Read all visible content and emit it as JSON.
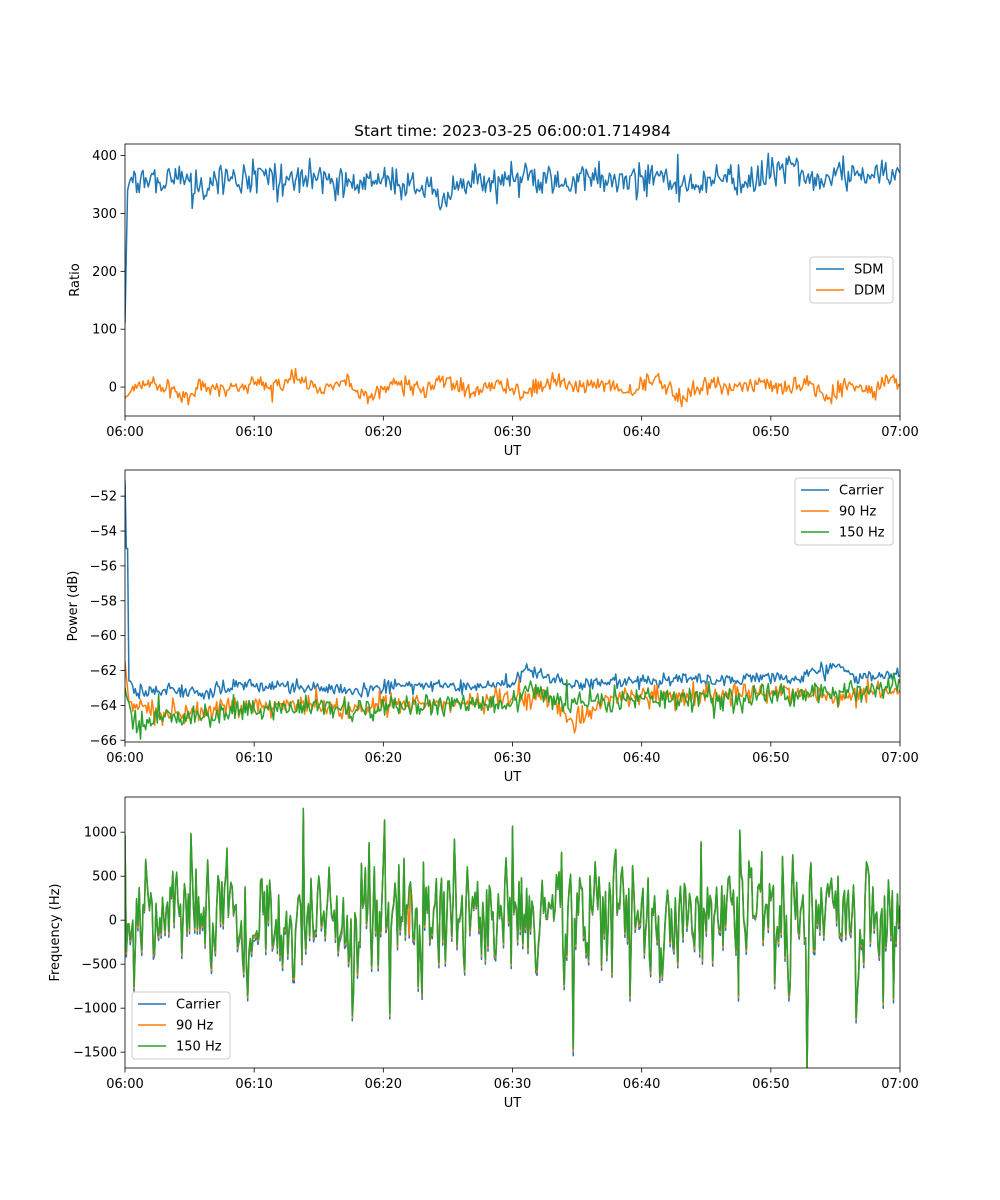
{
  "figure": {
    "title": "Start time: 2023-03-25 06:00:01.714984"
  },
  "chart_data": [
    {
      "type": "line",
      "title": "Start time: 2023-03-25 06:00:01.714984",
      "xlabel": "UT",
      "ylabel": "Ratio",
      "x_ticks": [
        "06:00",
        "06:10",
        "06:20",
        "06:30",
        "06:40",
        "06:50",
        "07:00"
      ],
      "y_ticks": [
        "0",
        "100",
        "200",
        "300",
        "400"
      ],
      "y_tick_values": [
        0,
        100,
        200,
        300,
        400
      ],
      "xlim_minutes": [
        0,
        60
      ],
      "ylim": [
        -50,
        420
      ],
      "legend_position": "center-right",
      "grid": false,
      "series": [
        {
          "name": "SDM",
          "color": "#1f77b4",
          "mean": 358,
          "noise": 14,
          "start_value": 110,
          "trend": 0,
          "points": [
            [
              0.0,
              110
            ],
            [
              0.2,
              340
            ],
            [
              0.5,
              362
            ],
            [
              1.0,
              352
            ],
            [
              2.0,
              365
            ],
            [
              3.0,
              348
            ],
            [
              4.0,
              360
            ],
            [
              5.0,
              355
            ],
            [
              6.0,
              340
            ],
            [
              7.0,
              362
            ],
            [
              8.0,
              357
            ],
            [
              10.0,
              368
            ],
            [
              12.0,
              355
            ],
            [
              14.0,
              365
            ],
            [
              16.0,
              360
            ],
            [
              18.0,
              350
            ],
            [
              20.0,
              362
            ],
            [
              22.0,
              348
            ],
            [
              24.0,
              340
            ],
            [
              24.5,
              312
            ],
            [
              26.0,
              360
            ],
            [
              28.0,
              352
            ],
            [
              30.0,
              365
            ],
            [
              32.0,
              358
            ],
            [
              34.0,
              350
            ],
            [
              36.0,
              362
            ],
            [
              38.0,
              355
            ],
            [
              40.0,
              365
            ],
            [
              42.0,
              358
            ],
            [
              44.0,
              350
            ],
            [
              46.0,
              362
            ],
            [
              48.0,
              355
            ],
            [
              50.0,
              365
            ],
            [
              51.5,
              390
            ],
            [
              53.0,
              352
            ],
            [
              55.0,
              365
            ],
            [
              57.0,
              358
            ],
            [
              58.0,
              362
            ],
            [
              59.5,
              367
            ],
            [
              60.0,
              370
            ]
          ]
        },
        {
          "name": "DDM",
          "color": "#ff7f0e",
          "mean": 0,
          "noise": 8,
          "start_value": -20,
          "trend": 0,
          "points": [
            [
              0.0,
              -20
            ],
            [
              0.5,
              -5
            ],
            [
              2.0,
              8
            ],
            [
              4.0,
              -8
            ],
            [
              5.0,
              -18
            ],
            [
              6.0,
              10
            ],
            [
              8.0,
              -5
            ],
            [
              10.0,
              5
            ],
            [
              12.0,
              0
            ],
            [
              13.0,
              18
            ],
            [
              15.0,
              -6
            ],
            [
              17.0,
              12
            ],
            [
              19.0,
              -18
            ],
            [
              21.0,
              10
            ],
            [
              23.0,
              -6
            ],
            [
              25.0,
              15
            ],
            [
              27.0,
              -8
            ],
            [
              29.0,
              5
            ],
            [
              31.0,
              -10
            ],
            [
              33.0,
              12
            ],
            [
              35.0,
              -5
            ],
            [
              37.0,
              8
            ],
            [
              39.0,
              -10
            ],
            [
              41.0,
              15
            ],
            [
              43.0,
              -22
            ],
            [
              45.0,
              8
            ],
            [
              47.0,
              -6
            ],
            [
              49.0,
              5
            ],
            [
              51.0,
              -8
            ],
            [
              53.0,
              10
            ],
            [
              54.5,
              -18
            ],
            [
              56.0,
              5
            ],
            [
              58.0,
              -8
            ],
            [
              59.0,
              18
            ],
            [
              60.0,
              2
            ]
          ]
        }
      ]
    },
    {
      "type": "line",
      "title": "",
      "xlabel": "UT",
      "ylabel": "Power (dB)",
      "x_ticks": [
        "06:00",
        "06:10",
        "06:20",
        "06:30",
        "06:40",
        "06:50",
        "07:00"
      ],
      "y_ticks": [
        "−66",
        "−64",
        "−62",
        "−60",
        "−58",
        "−56",
        "−54",
        "−52"
      ],
      "y_tick_values": [
        -66,
        -64,
        -62,
        -60,
        -58,
        -56,
        -54,
        -52
      ],
      "xlim_minutes": [
        0,
        60
      ],
      "ylim": [
        -66.1,
        -50.5
      ],
      "legend_position": "top-right",
      "grid": false,
      "series": [
        {
          "name": "Carrier",
          "color": "#1f77b4",
          "mean": -63.2,
          "noise": 0.2,
          "start_value": -51.1,
          "trend": 0.9,
          "points": [
            [
              0.0,
              -51.1
            ],
            [
              0.15,
              -55.0
            ],
            [
              0.35,
              -62.6
            ],
            [
              1.0,
              -63.3
            ],
            [
              3.0,
              -63.1
            ],
            [
              6.0,
              -63.3
            ],
            [
              9.0,
              -62.8
            ],
            [
              12.0,
              -62.9
            ],
            [
              15.0,
              -63.0
            ],
            [
              18.0,
              -63.1
            ],
            [
              21.0,
              -62.9
            ],
            [
              24.0,
              -62.8
            ],
            [
              27.0,
              -63.0
            ],
            [
              30.0,
              -62.7
            ],
            [
              31.0,
              -61.9
            ],
            [
              34.0,
              -62.8
            ],
            [
              37.0,
              -62.7
            ],
            [
              40.0,
              -62.6
            ],
            [
              43.0,
              -62.5
            ],
            [
              46.0,
              -62.6
            ],
            [
              49.0,
              -62.4
            ],
            [
              52.0,
              -62.5
            ],
            [
              55.0,
              -61.8
            ],
            [
              57.0,
              -62.4
            ],
            [
              60.0,
              -62.3
            ]
          ]
        },
        {
          "name": "90 Hz",
          "color": "#ff7f0e",
          "mean": -64.0,
          "noise": 0.3,
          "start_value": -61.5,
          "trend": 0.8,
          "points": [
            [
              0.0,
              -61.5
            ],
            [
              0.3,
              -63.8
            ],
            [
              3.0,
              -64.4
            ],
            [
              6.0,
              -64.3
            ],
            [
              9.0,
              -64.0
            ],
            [
              12.0,
              -63.9
            ],
            [
              15.0,
              -64.0
            ],
            [
              18.0,
              -64.2
            ],
            [
              21.0,
              -63.8
            ],
            [
              24.0,
              -63.9
            ],
            [
              27.0,
              -63.8
            ],
            [
              30.0,
              -63.6
            ],
            [
              33.0,
              -63.5
            ],
            [
              34.7,
              -65.1
            ],
            [
              37.0,
              -63.6
            ],
            [
              40.0,
              -63.4
            ],
            [
              43.0,
              -63.5
            ],
            [
              46.0,
              -63.4
            ],
            [
              49.0,
              -63.3
            ],
            [
              52.0,
              -63.3
            ],
            [
              55.0,
              -63.5
            ],
            [
              58.0,
              -63.2
            ],
            [
              60.0,
              -63.1
            ]
          ]
        },
        {
          "name": "150 Hz",
          "color": "#2ca02c",
          "mean": -64.2,
          "noise": 0.35,
          "start_value": -63.0,
          "trend": 0.9,
          "points": [
            [
              0.0,
              -63.0
            ],
            [
              0.5,
              -64.5
            ],
            [
              1.0,
              -65.3
            ],
            [
              3.0,
              -64.6
            ],
            [
              6.0,
              -64.7
            ],
            [
              9.0,
              -64.2
            ],
            [
              12.0,
              -64.1
            ],
            [
              15.0,
              -64.0
            ],
            [
              18.0,
              -64.3
            ],
            [
              21.0,
              -64.1
            ],
            [
              24.0,
              -64.0
            ],
            [
              27.0,
              -63.9
            ],
            [
              30.0,
              -63.8
            ],
            [
              31.5,
              -62.9
            ],
            [
              34.0,
              -63.9
            ],
            [
              37.0,
              -63.7
            ],
            [
              40.0,
              -63.6
            ],
            [
              43.0,
              -63.6
            ],
            [
              46.0,
              -63.5
            ],
            [
              49.0,
              -63.4
            ],
            [
              52.0,
              -63.4
            ],
            [
              55.0,
              -63.2
            ],
            [
              58.0,
              -63.1
            ],
            [
              60.0,
              -62.7
            ]
          ]
        }
      ]
    },
    {
      "type": "line",
      "title": "",
      "xlabel": "UT",
      "ylabel": "Frequency (Hz)",
      "x_ticks": [
        "06:00",
        "06:10",
        "06:20",
        "06:30",
        "06:40",
        "06:50",
        "07:00"
      ],
      "y_ticks": [
        "−1500",
        "−1000",
        "−500",
        "0",
        "500",
        "1000"
      ],
      "y_tick_values": [
        -1500,
        -1000,
        -500,
        0,
        500,
        1000
      ],
      "xlim_minutes": [
        0,
        60
      ],
      "ylim": [
        -1680,
        1400
      ],
      "legend_position": "bottom-left",
      "grid": false,
      "series": [
        {
          "name": "Carrier",
          "color": "#1f77b4",
          "mean": 0,
          "noise": 330,
          "offset_from_150hz": -60,
          "points": [
            [
              0.0,
              950
            ],
            [
              7.9,
              750
            ],
            [
              13.8,
              1240
            ],
            [
              23.0,
              -900
            ],
            [
              30.0,
              1030
            ],
            [
              34.7,
              -1540
            ],
            [
              47.5,
              -920
            ],
            [
              51.4,
              -920
            ],
            [
              58.7,
              -1000
            ],
            [
              59.5,
              -940
            ],
            [
              60.0,
              20
            ]
          ]
        },
        {
          "name": "90 Hz",
          "color": "#ff7f0e",
          "mean": 30,
          "noise": 330,
          "offset_from_150hz": -25,
          "points": [
            [
              0.0,
              960
            ],
            [
              7.9,
              800
            ],
            [
              13.8,
              1255
            ],
            [
              23.0,
              -860
            ],
            [
              30.0,
              1050
            ],
            [
              34.7,
              -1490
            ],
            [
              47.5,
              -880
            ],
            [
              51.4,
              -880
            ],
            [
              58.7,
              -960
            ],
            [
              59.5,
              -900
            ],
            [
              60.0,
              60
            ]
          ]
        },
        {
          "name": "150 Hz",
          "color": "#2ca02c",
          "mean": 50,
          "noise": 330,
          "offset_from_150hz": 0,
          "points": [
            [
              0.0,
              970
            ],
            [
              7.9,
              820
            ],
            [
              13.8,
              1270
            ],
            [
              22.0,
              380
            ],
            [
              23.0,
              -840
            ],
            [
              30.0,
              1070
            ],
            [
              34.7,
              -1460
            ],
            [
              47.5,
              -850
            ],
            [
              51.4,
              -850
            ],
            [
              58.7,
              -930
            ],
            [
              59.5,
              -880
            ],
            [
              60.0,
              170
            ]
          ]
        }
      ]
    }
  ]
}
